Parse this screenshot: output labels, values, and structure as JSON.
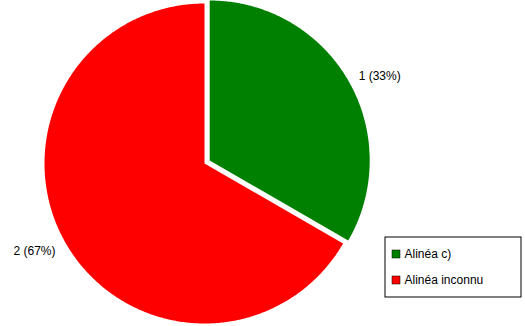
{
  "chart_data": {
    "type": "pie",
    "categories": [
      "Alinéa c)",
      "Alinéa inconnu"
    ],
    "values": [
      1,
      2
    ],
    "value_labels": [
      "1 (33%)",
      "2 (67%)"
    ],
    "colors": [
      "#008000",
      "#ff0000"
    ],
    "data_labels": true,
    "legend": "bottom-right"
  }
}
